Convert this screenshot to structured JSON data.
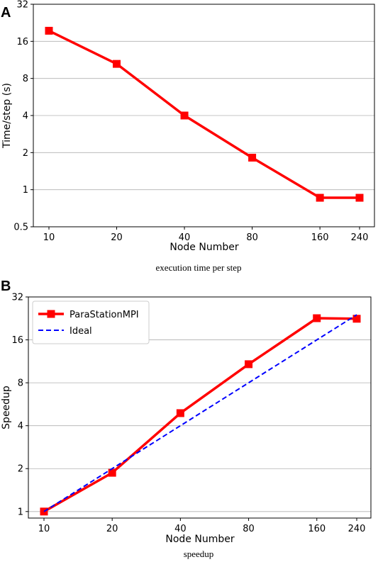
{
  "chart_data": [
    {
      "panel": "A",
      "type": "line",
      "caption": "execution time per step",
      "xlabel": "Node Number",
      "ylabel": "Time/step (s)",
      "xscale": "log",
      "yscale": "log2",
      "x_ticks": [
        10,
        20,
        40,
        80,
        160,
        240
      ],
      "x_tick_labels": [
        "10",
        "20",
        "40",
        "80",
        "160",
        "240"
      ],
      "y_ticks": [
        0.5,
        1,
        2,
        4,
        8,
        16,
        32
      ],
      "y_tick_labels": [
        "0.5",
        "1",
        "2",
        "4",
        "8",
        "16",
        "32"
      ],
      "ylim": [
        0.5,
        32
      ],
      "grid": "horizontal",
      "series": [
        {
          "color": "#ff0000",
          "marker": "square",
          "style": "solid",
          "x": [
            10,
            20,
            40,
            80,
            160,
            240
          ],
          "y": [
            19.5,
            10.5,
            4.0,
            1.82,
            0.86,
            0.86
          ]
        }
      ]
    },
    {
      "panel": "B",
      "type": "line",
      "caption": "speedup",
      "xlabel": "Node Number",
      "ylabel": "Speedup",
      "xscale": "log",
      "yscale": "log2",
      "x_ticks": [
        10,
        20,
        40,
        80,
        160,
        240
      ],
      "x_tick_labels": [
        "10",
        "20",
        "40",
        "80",
        "160",
        "240"
      ],
      "y_ticks": [
        1,
        2,
        4,
        8,
        16,
        32
      ],
      "y_tick_labels": [
        "1",
        "2",
        "4",
        "8",
        "16",
        "32"
      ],
      "ylim": [
        0.9,
        32
      ],
      "grid": "horizontal",
      "legend_position": "top-left",
      "series": [
        {
          "name": "ParaStationMPI",
          "color": "#ff0000",
          "marker": "square",
          "style": "solid",
          "x": [
            10,
            20,
            40,
            80,
            160,
            240
          ],
          "y": [
            1.0,
            1.87,
            4.9,
            10.8,
            22.7,
            22.5
          ]
        },
        {
          "name": "Ideal",
          "color": "#0000ff",
          "marker": "none",
          "style": "dashed",
          "x": [
            10,
            240
          ],
          "y": [
            1.0,
            24.0
          ]
        }
      ]
    }
  ]
}
